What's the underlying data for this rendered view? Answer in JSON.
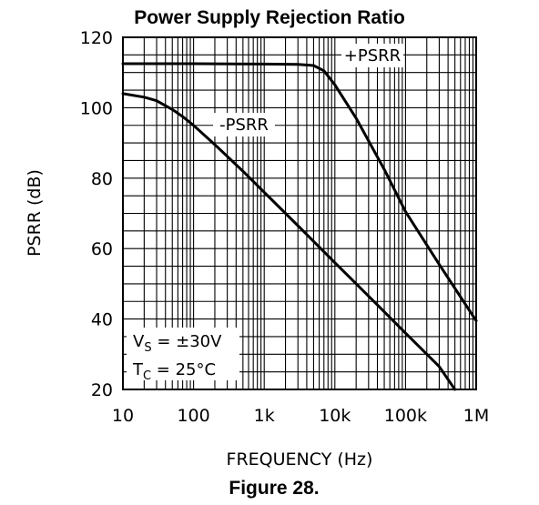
{
  "chart_data": {
    "type": "line",
    "title": "Power Supply Rejection Ratio",
    "caption": "Figure 28.",
    "xlabel": "FREQUENCY (Hz)",
    "ylabel": "PSRR (dB)",
    "x_scale": "log",
    "xlim": [
      10,
      1000000
    ],
    "ylim": [
      20,
      120
    ],
    "grid": true,
    "x_ticks": [
      {
        "value": 10,
        "label": "10"
      },
      {
        "value": 100,
        "label": "100"
      },
      {
        "value": 1000,
        "label": "1k"
      },
      {
        "value": 10000,
        "label": "10k"
      },
      {
        "value": 100000,
        "label": "100k"
      },
      {
        "value": 1000000,
        "label": "1M"
      }
    ],
    "y_ticks": [
      {
        "value": 20,
        "label": "20"
      },
      {
        "value": 40,
        "label": "40"
      },
      {
        "value": 60,
        "label": "60"
      },
      {
        "value": 80,
        "label": "80"
      },
      {
        "value": 100,
        "label": "100"
      },
      {
        "value": 120,
        "label": "120"
      }
    ],
    "series": [
      {
        "name": "+PSRR",
        "x": [
          10,
          100,
          1000,
          3000,
          5000,
          7000,
          10000,
          20000,
          50000,
          100000,
          300000,
          1000000
        ],
        "y": [
          112.5,
          112.5,
          112.4,
          112.3,
          112.0,
          110.5,
          106.5,
          97,
          82.5,
          70.5,
          55.5,
          39.5
        ]
      },
      {
        "name": "-PSRR",
        "x": [
          10,
          20,
          30,
          50,
          70,
          100,
          200,
          500,
          1000,
          3000,
          10000,
          30000,
          100000,
          300000,
          500000
        ],
        "y": [
          104,
          103,
          102,
          99.5,
          97.5,
          95,
          89.5,
          82,
          76,
          66.5,
          56,
          46.5,
          36,
          26.5,
          20
        ]
      }
    ],
    "annotations": [
      {
        "text": "+PSRR",
        "target": "series.0"
      },
      {
        "text": "-PSRR",
        "target": "series.1"
      }
    ],
    "conditions": [
      {
        "symbol": "V",
        "subscript": "S",
        "text": " = ±30V"
      },
      {
        "symbol": "T",
        "subscript": "C",
        "text": " = 25°C"
      }
    ]
  }
}
